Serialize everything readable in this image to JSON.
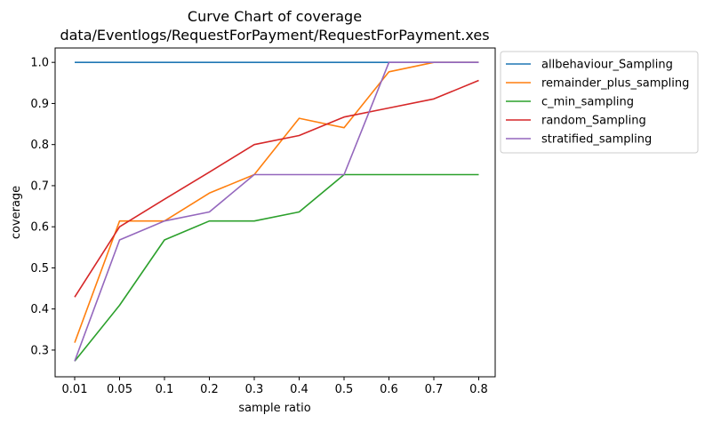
{
  "chart_data": {
    "type": "line",
    "title": "Curve Chart of coverage",
    "subtitle": "data/Eventlogs/RequestForPayment/RequestForPayment.xes",
    "xlabel": "sample ratio",
    "ylabel": "coverage",
    "categories": [
      "0.01",
      "0.05",
      "0.1",
      "0.2",
      "0.3",
      "0.4",
      "0.5",
      "0.6",
      "0.7",
      "0.8"
    ],
    "yticks": [
      "0.3",
      "0.4",
      "0.5",
      "0.6",
      "0.7",
      "0.8",
      "0.9",
      "1.0"
    ],
    "ylim": [
      0.235,
      1.035
    ],
    "grid": false,
    "legend_position": "outside-top-right",
    "series": [
      {
        "name": "allbehaviour_Sampling",
        "color": "#1f77b4",
        "values": [
          1.0,
          1.0,
          1.0,
          1.0,
          1.0,
          1.0,
          1.0,
          1.0,
          1.0,
          1.0
        ]
      },
      {
        "name": "remainder_plus_sampling",
        "color": "#ff7f0e",
        "values": [
          0.318,
          0.614,
          0.614,
          0.682,
          0.727,
          0.864,
          0.841,
          0.977,
          1.0,
          1.0
        ]
      },
      {
        "name": "c_min_sampling",
        "color": "#2ca02c",
        "values": [
          0.273,
          0.409,
          0.568,
          0.614,
          0.614,
          0.636,
          0.727,
          0.727,
          0.727,
          0.727
        ]
      },
      {
        "name": "random_Sampling",
        "color": "#d62728",
        "values": [
          0.429,
          0.6,
          0.667,
          0.733,
          0.8,
          0.822,
          0.867,
          0.889,
          0.911,
          0.956
        ]
      },
      {
        "name": "stratified_sampling",
        "color": "#9467bd",
        "values": [
          0.273,
          0.568,
          0.614,
          0.636,
          0.727,
          0.727,
          0.727,
          1.0,
          1.0,
          1.0
        ]
      }
    ]
  }
}
